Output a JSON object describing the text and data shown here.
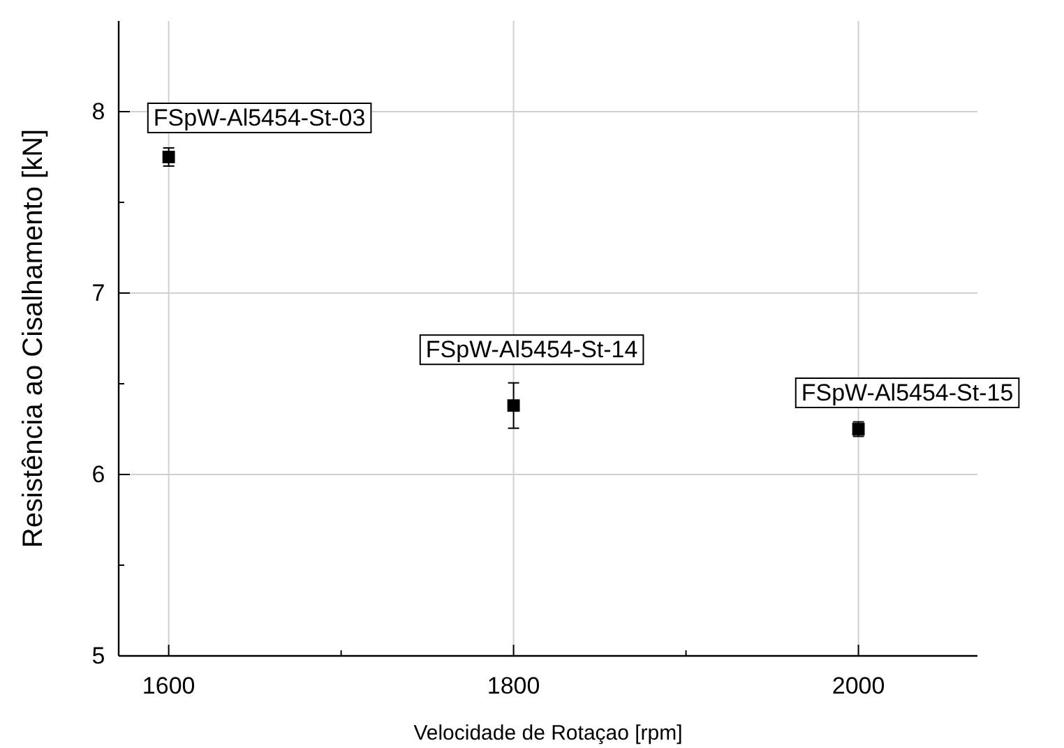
{
  "chart_data": {
    "type": "scatter",
    "xlabel": "Velocidade de Rotaçao [rpm]",
    "ylabel": "Resistência ao Cisalhamento [kN]",
    "x": [
      1600,
      1800,
      2000
    ],
    "series": [
      {
        "color": "#000000",
        "values": [
          7.75,
          6.38,
          6.25
        ],
        "errors": [
          0.05,
          0.125,
          0.04
        ]
      }
    ],
    "marker": "square",
    "grid": true,
    "xlim": [
      1571,
      2069
    ],
    "xticks": [
      1600,
      {
        "value": 1700,
        "label": null
      },
      1800,
      {
        "value": 1900,
        "label": null
      },
      2000
    ],
    "ylim": [
      5,
      8.5
    ],
    "yticks": [
      5,
      {
        "value": 5.5,
        "label": null
      },
      6,
      {
        "value": 6.5,
        "label": null
      },
      7,
      {
        "value": 7.5,
        "label": null
      },
      8
    ],
    "annotations": [
      {
        "text": "FSpW-Al5454-St-03",
        "x": 1600,
        "y": 7.75
      },
      {
        "text": "FSpW-Al5454-St-14",
        "x": 1800,
        "y": 6.38
      },
      {
        "text": "FSpW-Al5454-St-15",
        "x": 2000,
        "y": 6.25
      }
    ]
  }
}
